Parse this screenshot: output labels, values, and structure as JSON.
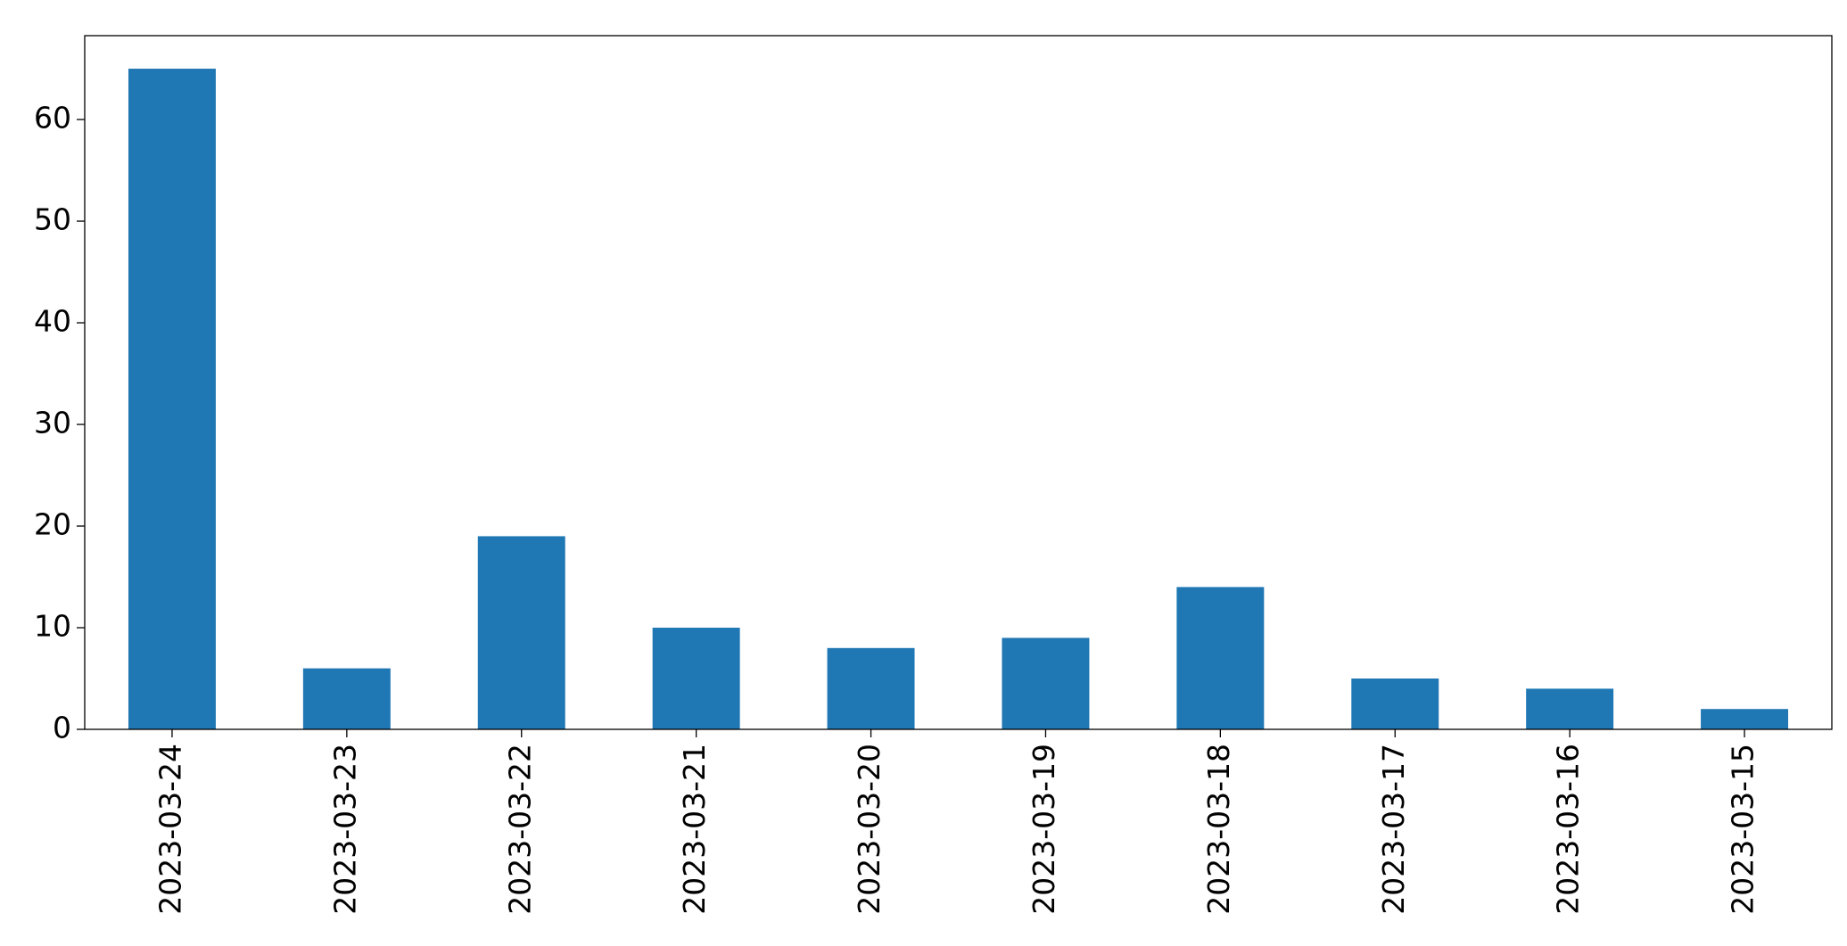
{
  "chart_data": {
    "type": "bar",
    "categories": [
      "2023-03-24",
      "2023-03-23",
      "2023-03-22",
      "2023-03-21",
      "2023-03-20",
      "2023-03-19",
      "2023-03-18",
      "2023-03-17",
      "2023-03-16",
      "2023-03-15"
    ],
    "values": [
      65,
      6,
      19,
      10,
      8,
      9,
      14,
      5,
      4,
      2
    ],
    "color": "#1f77b4",
    "ylim": [
      0,
      68.25
    ],
    "yticks": [
      0,
      10,
      20,
      30,
      40,
      50,
      60
    ],
    "grid": false
  }
}
